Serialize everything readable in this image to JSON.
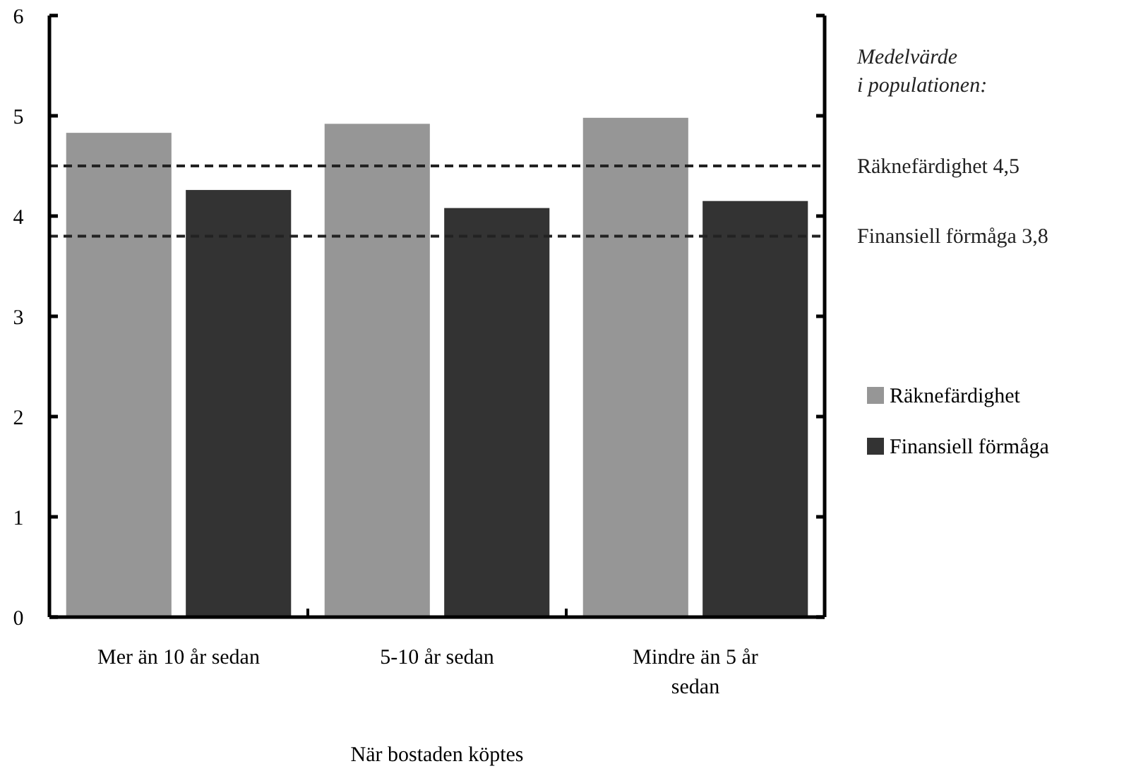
{
  "chart_data": {
    "type": "bar",
    "xlabel": "När bostaden köptes",
    "categories": [
      "Mer än 10 år sedan",
      "5-10 år sedan",
      "Mindre än 5 år sedan"
    ],
    "series": [
      {
        "name": "Räknefärdighet",
        "color": "#969696",
        "values": [
          4.83,
          4.92,
          4.98
        ]
      },
      {
        "name": "Finansiell förmåga",
        "color": "#333333",
        "values": [
          4.26,
          4.08,
          4.15
        ]
      }
    ],
    "ylim": [
      0,
      6
    ],
    "yticks": [
      0,
      1,
      2,
      3,
      4,
      5,
      6
    ],
    "grid": false,
    "legend": "right",
    "ref_lines": [
      {
        "axis": "y",
        "value": 4.5,
        "label": "Räknefärdighet 4,5",
        "line_style": "dashed",
        "color": "#222222"
      },
      {
        "axis": "y",
        "value": 3.8,
        "label": "Finansiell förmåga 3,8",
        "line_style": "dashed",
        "color": "#222222"
      }
    ],
    "annotations": [
      "Medelvärde i populationen:"
    ]
  }
}
